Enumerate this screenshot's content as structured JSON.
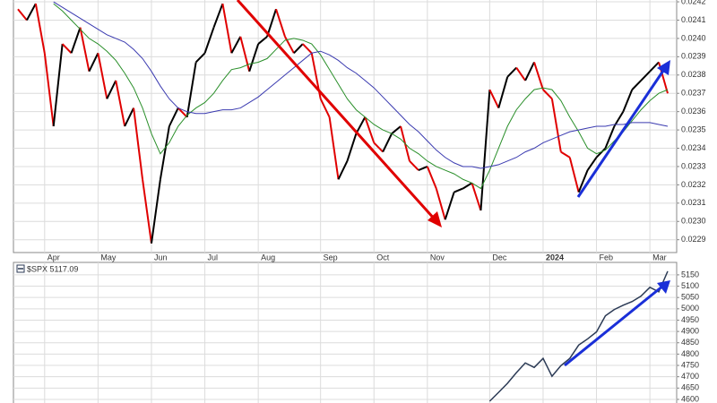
{
  "chart_data": [
    {
      "type": "line",
      "categories": [
        null,
        null,
        null,
        "Apr",
        null,
        null,
        null,
        null,
        null,
        "May",
        null,
        null,
        null,
        null,
        null,
        "Jun",
        null,
        null,
        null,
        null,
        null,
        "Jul",
        null,
        null,
        null,
        null,
        null,
        "Aug",
        null,
        null,
        null,
        null,
        null,
        null,
        "Sep",
        null,
        null,
        null,
        null,
        null,
        "Oct",
        null,
        null,
        null,
        null,
        null,
        "Nov",
        null,
        null,
        null,
        null,
        null,
        null,
        "Dec",
        null,
        null,
        null,
        null,
        null,
        "2024",
        null,
        null,
        null,
        null,
        null,
        "Feb",
        null,
        null,
        null,
        null,
        null,
        "Mar",
        null,
        null
      ],
      "series": [
        {
          "up_color": "#000000",
          "down_color": "#e00000",
          "values": [
            0.02416,
            0.0241,
            0.02419,
            0.02392,
            0.02352,
            0.02397,
            0.02392,
            0.02406,
            0.02382,
            0.02392,
            0.02367,
            0.02377,
            0.02352,
            0.02362,
            0.02323,
            0.02288,
            0.02323,
            0.02352,
            0.02362,
            0.02357,
            0.02387,
            0.02392,
            0.02406,
            0.02419,
            0.02392,
            0.02401,
            0.02382,
            0.02397,
            0.02401,
            0.02416,
            0.02401,
            0.02392,
            0.02397,
            0.02392,
            0.02367,
            0.02357,
            0.02323,
            0.02333,
            0.02348,
            0.02357,
            0.02343,
            0.02338,
            0.02348,
            0.02352,
            0.02333,
            0.02328,
            0.0233,
            0.02318,
            0.02301,
            0.02316,
            0.02318,
            0.02321,
            0.02306,
            0.02372,
            0.02362,
            0.02379,
            0.02384,
            0.02377,
            0.02387,
            0.02372,
            0.02367,
            0.02338,
            0.02335,
            0.02316,
            0.02328,
            0.02335,
            0.0234,
            0.02352,
            0.0236,
            0.02372,
            0.02377,
            0.02382,
            0.02387,
            0.0237
          ]
        },
        {
          "color": "#2a8f2a",
          "values": [
            null,
            null,
            null,
            null,
            0.02419,
            0.02415,
            0.0241,
            0.02405,
            0.024,
            0.02397,
            0.02393,
            0.02388,
            0.02381,
            0.02373,
            0.02362,
            0.02348,
            0.02337,
            0.02343,
            0.02352,
            0.02358,
            0.02362,
            0.02365,
            0.0237,
            0.02377,
            0.02383,
            0.02384,
            0.02386,
            0.02387,
            0.02389,
            0.02394,
            0.02399,
            0.024,
            0.02399,
            0.02397,
            0.02391,
            0.02383,
            0.02375,
            0.02367,
            0.02361,
            0.02357,
            0.02353,
            0.0235,
            0.02348,
            0.02345,
            0.0234,
            0.02337,
            0.02333,
            0.0233,
            0.02328,
            0.02326,
            0.02323,
            0.02321,
            0.02318,
            0.02328,
            0.0234,
            0.02352,
            0.02361,
            0.02367,
            0.02372,
            0.02373,
            0.02372,
            0.02366,
            0.02357,
            0.02349,
            0.0234,
            0.02337,
            0.02339,
            0.02344,
            0.02349,
            0.02355,
            0.02361,
            0.02366,
            0.0237,
            0.02372
          ]
        },
        {
          "color": "#3a3ab0",
          "values": [
            null,
            null,
            null,
            null,
            0.0242,
            0.02417,
            0.02414,
            0.02411,
            0.02408,
            0.02405,
            0.02402,
            0.024,
            0.02398,
            0.02394,
            0.02389,
            0.02382,
            0.02374,
            0.02367,
            0.02362,
            0.0236,
            0.02359,
            0.02359,
            0.0236,
            0.02361,
            0.02361,
            0.02362,
            0.02365,
            0.02368,
            0.02372,
            0.02376,
            0.0238,
            0.02384,
            0.02388,
            0.02392,
            0.02393,
            0.02391,
            0.02388,
            0.02384,
            0.02381,
            0.02377,
            0.02373,
            0.02368,
            0.02363,
            0.02358,
            0.02353,
            0.02349,
            0.02344,
            0.02339,
            0.02335,
            0.02332,
            0.0233,
            0.0233,
            0.02329,
            0.0233,
            0.02331,
            0.02333,
            0.02335,
            0.02338,
            0.0234,
            0.02343,
            0.02345,
            0.02347,
            0.02349,
            0.0235,
            0.02351,
            0.02352,
            0.02352,
            0.02353,
            0.02353,
            0.02354,
            0.02354,
            0.02354,
            0.02353,
            0.02352
          ]
        }
      ],
      "ylim": [
        0.02283,
        0.02421
      ],
      "yticks": [
        {
          "value": 0.0229,
          "label": "0.0229"
        },
        {
          "value": 0.023,
          "label": "0.0230"
        },
        {
          "value": 0.0231,
          "label": "0.0231"
        },
        {
          "value": 0.0232,
          "label": "0.0232"
        },
        {
          "value": 0.0233,
          "label": "0.0233"
        },
        {
          "value": 0.0234,
          "label": "0.0234"
        },
        {
          "value": 0.0235,
          "label": "0.0235"
        },
        {
          "value": 0.0236,
          "label": "0.0236"
        },
        {
          "value": 0.0237,
          "label": "0.0237"
        },
        {
          "value": 0.0238,
          "label": "0.0238"
        },
        {
          "value": 0.0239,
          "label": "0.0239"
        },
        {
          "value": 0.024,
          "label": "0.0240"
        },
        {
          "value": 0.0241,
          "label": "0.0241"
        },
        {
          "value": 0.0242,
          "label": "0.0242"
        }
      ],
      "grid": true
    },
    {
      "type": "line",
      "legend_label": "$SPX 5117.09",
      "series": [
        {
          "color": "#2b3a55",
          "values": [
            null,
            null,
            null,
            null,
            null,
            null,
            null,
            null,
            null,
            null,
            null,
            null,
            null,
            null,
            null,
            null,
            null,
            null,
            null,
            null,
            null,
            null,
            null,
            null,
            null,
            null,
            null,
            null,
            null,
            null,
            null,
            null,
            null,
            null,
            null,
            null,
            null,
            null,
            null,
            null,
            null,
            null,
            null,
            null,
            null,
            null,
            null,
            null,
            null,
            null,
            null,
            null,
            null,
            4592,
            4631,
            4671,
            4718,
            4761,
            4741,
            4781,
            4702,
            4749,
            4781,
            4840,
            4867,
            4898,
            4969,
            4997,
            5016,
            5032,
            5056,
            5095,
            5075,
            5166
          ]
        }
      ],
      "ylim": [
        4584,
        5205
      ],
      "yticks": [
        4600,
        4650,
        4700,
        4750,
        4800,
        4850,
        4900,
        4950,
        5000,
        5050,
        5100,
        5150
      ],
      "grid": true
    }
  ]
}
